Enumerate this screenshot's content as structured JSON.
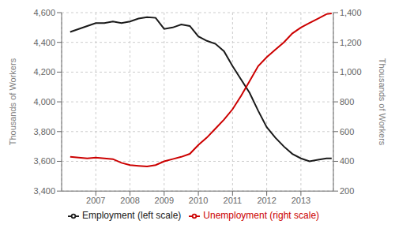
{
  "chart_data": {
    "type": "line",
    "title": "",
    "ylabel": "Thousands of Workers",
    "y2label": "Thousands of Workers",
    "x": [
      2006.25,
      2006.5,
      2006.75,
      2007.0,
      2007.25,
      2007.5,
      2007.75,
      2008.0,
      2008.25,
      2008.5,
      2008.75,
      2009.0,
      2009.25,
      2009.5,
      2009.75,
      2010.0,
      2010.25,
      2010.5,
      2010.75,
      2011.0,
      2011.25,
      2011.5,
      2011.75,
      2012.0,
      2012.25,
      2012.5,
      2012.75,
      2013.0,
      2013.25,
      2013.5,
      2013.75,
      2013.9
    ],
    "series": [
      {
        "name": "Employment (left scale)",
        "color": "#1a1a1a",
        "values": [
          4470,
          4490,
          4510,
          4530,
          4530,
          4540,
          4530,
          4540,
          4560,
          4570,
          4565,
          4490,
          4500,
          4520,
          4510,
          4440,
          4410,
          4390,
          4340,
          4240,
          4150,
          4060,
          3940,
          3830,
          3760,
          3700,
          3650,
          3620,
          3600,
          3610,
          3620,
          3620
        ]
      },
      {
        "name": "Unemployment (right scale)",
        "color": "#cc0000",
        "axis": "y2",
        "values": [
          430,
          425,
          420,
          425,
          420,
          415,
          390,
          375,
          370,
          365,
          375,
          400,
          415,
          430,
          450,
          510,
          560,
          620,
          680,
          750,
          840,
          940,
          1040,
          1100,
          1150,
          1200,
          1260,
          1300,
          1330,
          1360,
          1390,
          1395
        ]
      }
    ],
    "xlim": [
      2006.0,
      2013.95
    ],
    "xticks": [
      2007,
      2008,
      2009,
      2010,
      2011,
      2012,
      2013
    ],
    "ylim": [
      3400,
      4600
    ],
    "yticks": [
      {
        "value": 3400,
        "label": "3,400"
      },
      {
        "value": 3600,
        "label": "3,600"
      },
      {
        "value": 3800,
        "label": "3,800"
      },
      {
        "value": 4000,
        "label": "4,000"
      },
      {
        "value": 4200,
        "label": "4,200"
      },
      {
        "value": 4400,
        "label": "4,400"
      },
      {
        "value": 4600,
        "label": "4,600"
      }
    ],
    "y2lim": [
      200,
      1400
    ],
    "y2ticks": [
      200,
      400,
      600,
      800,
      {
        "value": 1000,
        "label": "1,000"
      },
      {
        "value": 1200,
        "label": "1,200"
      },
      {
        "value": 1400,
        "label": "1,400"
      }
    ],
    "grid": true,
    "legend": "bottom"
  }
}
